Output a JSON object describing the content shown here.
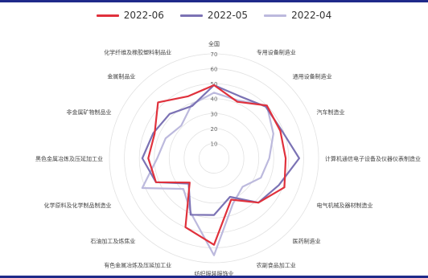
{
  "chart_data": {
    "type": "radar",
    "axes": [
      "全国",
      "专用设备制造业",
      "通用设备制造业",
      "汽车制造业",
      "计算机通信电子设备及仪器仪表制造业",
      "电气机械及器材制造业",
      "医药制造业",
      "农副食品加工业",
      "纺织服装服饰业",
      "有色金属冶炼及压延加工业",
      "石油加工及炼焦业",
      "化学原料及化学制品制造业",
      "黑色金属冶炼及压延加工业",
      "非金属矿物制品业",
      "金属制品业",
      "化学纤维及橡胶塑料制品业"
    ],
    "ticks": [
      10,
      20,
      30,
      40,
      50,
      60,
      70
    ],
    "rmax": 70,
    "series": [
      {
        "name": "2022-06",
        "color": "#e0313c",
        "values": [
          49,
          41,
          50,
          48,
          48,
          51,
          42,
          30,
          58,
          50,
          23,
          42,
          44,
          43,
          53,
          45
        ]
      },
      {
        "name": "2022-05",
        "color": "#7b72b4",
        "values": [
          49,
          45,
          49,
          49,
          57,
          47,
          42,
          28,
          38,
          41,
          24,
          42,
          48,
          44,
          42,
          38
        ]
      },
      {
        "name": "2022-04",
        "color": "#bcb9dd",
        "values": [
          44,
          42,
          50,
          43,
          37,
          34,
          27,
          33,
          65,
          40,
          29,
          52,
          38,
          35,
          31,
          39
        ]
      }
    ]
  }
}
